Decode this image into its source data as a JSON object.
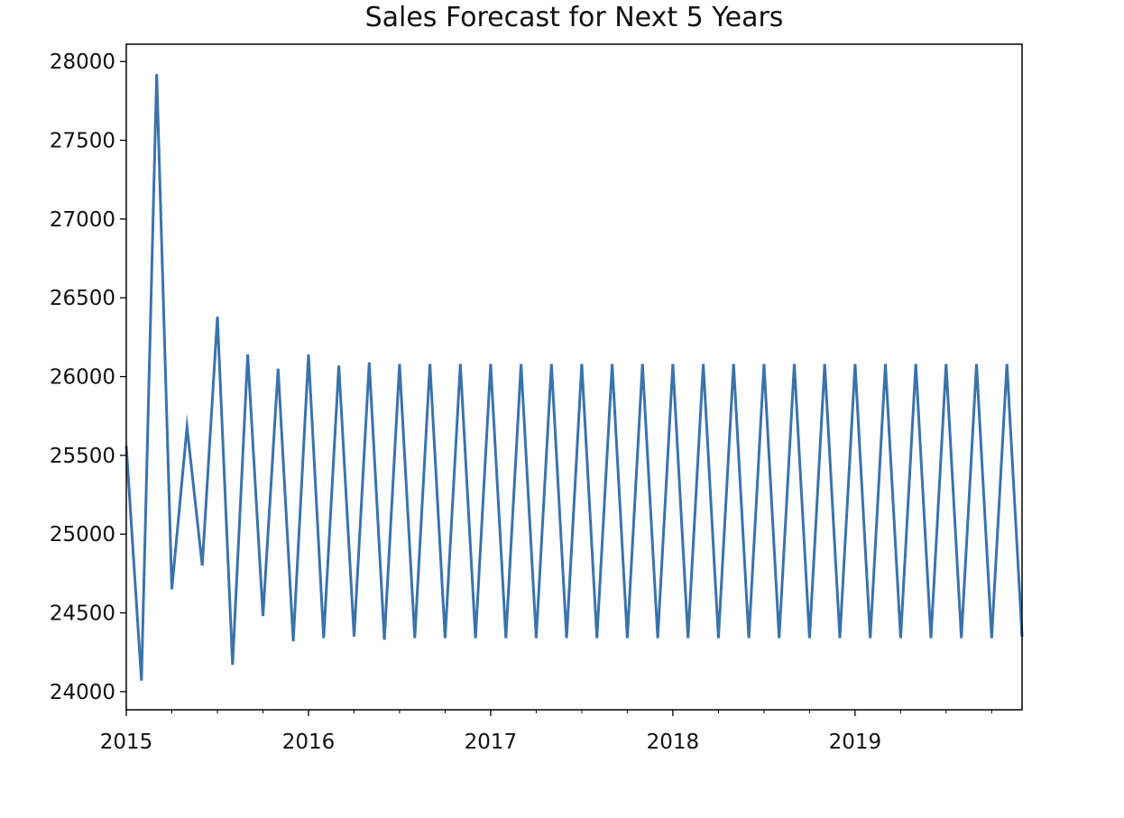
{
  "chart_data": {
    "type": "line",
    "title": "Sales Forecast for Next 5 Years",
    "xlabel": "",
    "ylabel": "",
    "x_range": [
      "2015-01",
      "2019-12"
    ],
    "ylim": [
      23885,
      28110
    ],
    "grid": false,
    "line_color": "#3a73ac",
    "x_ticks": [
      "2015",
      "2016",
      "2017",
      "2018",
      "2019"
    ],
    "y_ticks": [
      24000,
      24500,
      25000,
      25500,
      26000,
      26500,
      27000,
      27500,
      28000
    ],
    "series": [
      {
        "x": [
          "2015-01",
          "2015-02",
          "2015-03",
          "2015-04",
          "2015-05",
          "2015-06",
          "2015-07",
          "2015-08",
          "2015-09",
          "2015-10",
          "2015-11",
          "2015-12",
          "2016-01",
          "2016-02",
          "2016-03",
          "2016-04",
          "2016-05",
          "2016-06",
          "2016-07",
          "2016-08",
          "2016-09",
          "2016-10",
          "2016-11",
          "2016-12",
          "2017-01",
          "2017-02",
          "2017-03",
          "2017-04",
          "2017-05",
          "2017-06",
          "2017-07",
          "2017-08",
          "2017-09",
          "2017-10",
          "2017-11",
          "2017-12",
          "2018-01",
          "2018-02",
          "2018-03",
          "2018-04",
          "2018-05",
          "2018-06",
          "2018-07",
          "2018-08",
          "2018-09",
          "2018-10",
          "2018-11",
          "2018-12",
          "2019-01",
          "2019-02",
          "2019-03",
          "2019-04",
          "2019-05",
          "2019-06",
          "2019-07",
          "2019-08",
          "2019-09",
          "2019-10",
          "2019-11",
          "2019-12"
        ],
        "values": [
          25560,
          24070,
          27920,
          24650,
          25680,
          24800,
          26380,
          24170,
          26140,
          24480,
          26050,
          24320,
          26140,
          24340,
          26070,
          24350,
          26090,
          24330,
          26080,
          24340,
          26080,
          24340,
          26080,
          24340,
          26080,
          24340,
          26080,
          24340,
          26080,
          24340,
          26080,
          24340,
          26080,
          24340,
          26080,
          24340,
          26080,
          24340,
          26080,
          24340,
          26080,
          24340,
          26080,
          24340,
          26080,
          24340,
          26080,
          24340,
          26080,
          24340,
          26080,
          24340,
          26080,
          24340,
          26080,
          24340,
          26080,
          24340,
          26080,
          24350
        ]
      }
    ]
  }
}
